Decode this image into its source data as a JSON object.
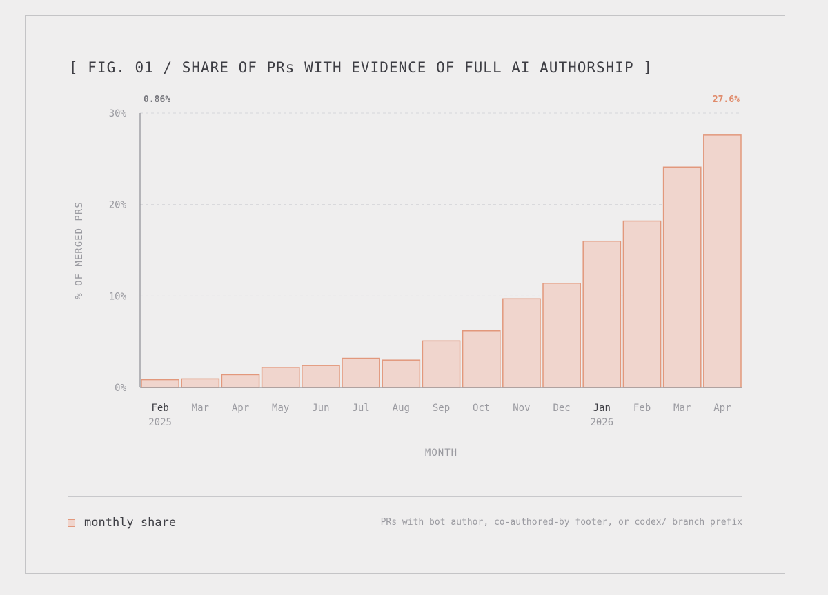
{
  "figure": {
    "title": "[ FIG. 01 / SHARE OF PRs WITH EVIDENCE OF FULL AI AUTHORSHIP ]",
    "first_value_label": "0.86%",
    "last_value_label": "27.6%"
  },
  "legend": {
    "label": "monthly share",
    "footnote": "PRs with bot author, co-authored-by footer, or codex/ branch prefix"
  },
  "colors": {
    "bar_fill": "#f0d5cd",
    "bar_stroke": "#e2987c",
    "accent": "#e08b6b",
    "axis": "#8e8e94",
    "text": "#3e3e44",
    "muted": "#9a9aa0"
  },
  "chart_data": {
    "type": "bar",
    "categories": [
      "Feb",
      "Mar",
      "Apr",
      "May",
      "Jun",
      "Jul",
      "Aug",
      "Sep",
      "Oct",
      "Nov",
      "Dec",
      "Jan",
      "Feb",
      "Mar",
      "Apr"
    ],
    "category_years": [
      "2025",
      "",
      "",
      "",
      "",
      "",
      "",
      "",
      "",
      "",
      "",
      "2026",
      "",
      "",
      ""
    ],
    "highlighted_categories": [
      0,
      11
    ],
    "values": [
      0.86,
      0.95,
      1.4,
      2.2,
      2.4,
      3.2,
      3.0,
      5.1,
      6.2,
      9.7,
      11.4,
      16.0,
      18.2,
      24.1,
      27.6
    ],
    "xlabel": "MONTH",
    "ylabel": "% OF MERGED PRS",
    "ylim": [
      0,
      30
    ],
    "yticks": [
      0,
      10,
      20,
      30
    ],
    "ytick_labels": [
      "0%",
      "10%",
      "20%",
      "30%"
    ],
    "grid": true,
    "legend_position": "bottom-left"
  }
}
